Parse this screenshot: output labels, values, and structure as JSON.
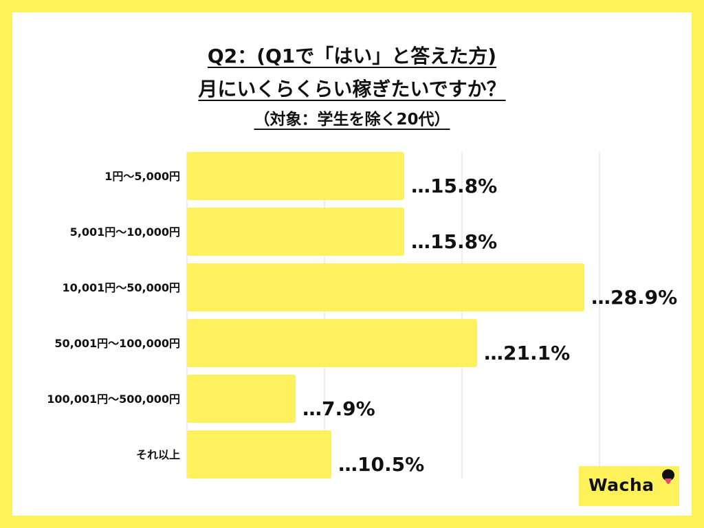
{
  "title": {
    "line1": "Q2：(Q1で「はい」と答えた方)",
    "line2": "月にいくらくらい稼ぎたいですか？",
    "line3": "（対象：学生を除く20代）"
  },
  "colors": {
    "background": "#FFF159",
    "bar": "#FFF15E",
    "grid": "#DDDDDD",
    "text": "#111111"
  },
  "logo": {
    "text": "Wacha",
    "icon": "tongue-face-icon"
  },
  "chart_data": {
    "type": "bar",
    "orientation": "horizontal",
    "categories": [
      "1円〜5,000円",
      "5,001円〜10,000円",
      "10,001円〜50,000円",
      "50,001円〜100,000円",
      "100,001円〜500,000円",
      "それ以上"
    ],
    "values": [
      15.8,
      15.8,
      28.9,
      21.1,
      7.9,
      10.5
    ],
    "value_labels": [
      "…15.8%",
      "…15.8%",
      "…28.9%",
      "…21.1%",
      "…7.9%",
      "…10.5%"
    ],
    "xlim": [
      0,
      30
    ],
    "grid": true,
    "gridlines_x": [
      10,
      20,
      30
    ],
    "legend": "none"
  }
}
